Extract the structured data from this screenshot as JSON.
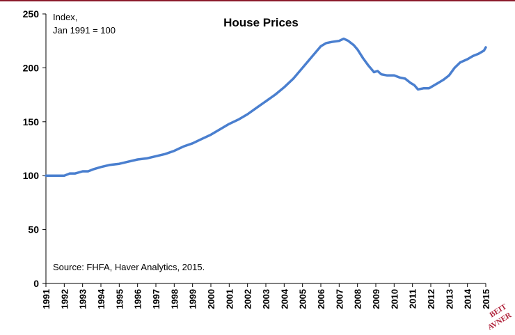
{
  "chart_data": {
    "type": "line",
    "title": "House Prices",
    "ylabel": "Index,",
    "ylabel_line2": "Jan 1991 = 100",
    "source": "Source: FHFA, Haver Analytics, 2015.",
    "xlabel": "",
    "xlim": [
      1991,
      2015
    ],
    "ylim": [
      0,
      250
    ],
    "yticks": [
      "0",
      "50",
      "100",
      "150",
      "200",
      "250"
    ],
    "xticks": [
      "1991",
      "1992",
      "1993",
      "1994",
      "1995",
      "1996",
      "1997",
      "1998",
      "1999",
      "2000",
      "2001",
      "2002",
      "2003",
      "2004",
      "2005",
      "2006",
      "2007",
      "2008",
      "2009",
      "2010",
      "2011",
      "2012",
      "2013",
      "2014",
      "2015"
    ],
    "grid": false,
    "line_color": "#4a7fcf",
    "series": [
      {
        "x": [
          1991.0,
          1991.5,
          1992.0,
          1992.3,
          1992.6,
          1993.0,
          1993.3,
          1993.6,
          1994.0,
          1994.5,
          1995.0,
          1995.5,
          1996.0,
          1996.5,
          1997.0,
          1997.5,
          1998.0,
          1998.5,
          1999.0,
          1999.5,
          2000.0,
          2000.5,
          2001.0,
          2001.5,
          2002.0,
          2002.5,
          2003.0,
          2003.5,
          2004.0,
          2004.5,
          2005.0,
          2005.5,
          2006.0,
          2006.3,
          2006.6,
          2007.0,
          2007.25,
          2007.5,
          2007.8,
          2008.0,
          2008.3,
          2008.6,
          2008.9,
          2009.1,
          2009.3,
          2009.6,
          2010.0,
          2010.3,
          2010.6,
          2010.9,
          2011.1,
          2011.3,
          2011.6,
          2011.9,
          2012.1,
          2012.4,
          2012.7,
          2013.0,
          2013.3,
          2013.6,
          2014.0,
          2014.3,
          2014.6,
          2014.9,
          2015.0
        ],
        "values": [
          100,
          100,
          100,
          102,
          102,
          104,
          104,
          106,
          108,
          110,
          111,
          113,
          115,
          116,
          118,
          120,
          123,
          127,
          130,
          134,
          138,
          143,
          148,
          152,
          157,
          163,
          169,
          175,
          182,
          190,
          200,
          210,
          220,
          223,
          224,
          225,
          227,
          225,
          221,
          217,
          209,
          202,
          196,
          197,
          194,
          193,
          193,
          191,
          190,
          186,
          184,
          180,
          181,
          181,
          183,
          186,
          189,
          193,
          200,
          205,
          208,
          211,
          213,
          216,
          219
        ]
      }
    ]
  },
  "logo": {
    "line1": "BEIT",
    "line2": "AVNER"
  }
}
